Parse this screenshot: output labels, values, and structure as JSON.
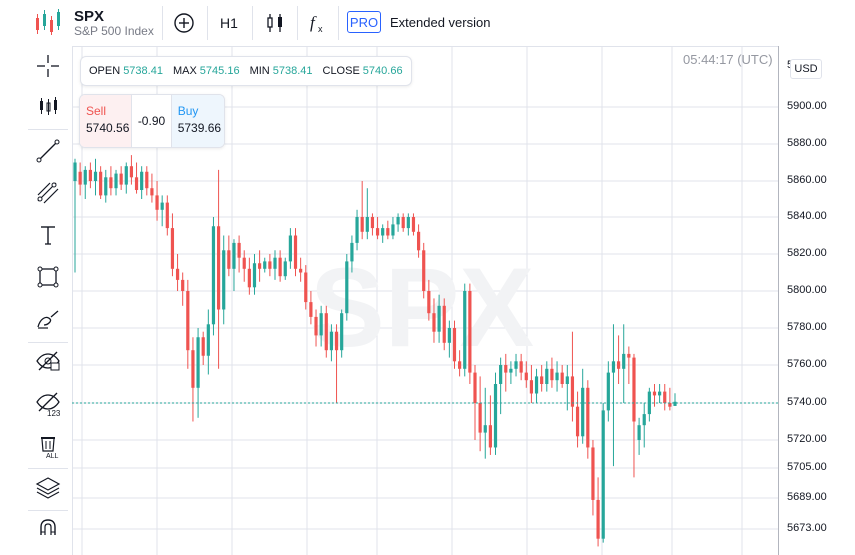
{
  "symbol": {
    "ticker": "SPX",
    "name": "S&P 500 Index"
  },
  "toolbar": {
    "timeframe": "H1",
    "pro": "PRO",
    "extended": "Extended version"
  },
  "leftbar": {
    "tools": [
      "crosshair-icon",
      "candles-icon",
      "trend-line-icon",
      "fib-icon",
      "text-icon",
      "rectangle-icon",
      "brush-icon",
      "hide-drawings-icon",
      "hide-indicators-icon",
      "delete-all-icon",
      "layers-icon",
      "magnet-icon"
    ]
  },
  "ohlc": {
    "open_label": "OPEN",
    "open": "5738.41",
    "max_label": "MAX",
    "max": "5745.16",
    "min_label": "MIN",
    "min": "5738.41",
    "close_label": "CLOSE",
    "close": "5740.66"
  },
  "trade": {
    "sell_label": "Sell",
    "sell": "5740.56",
    "spread": "-0.90",
    "buy_label": "Buy",
    "buy": "5739.66"
  },
  "clock": "05:44:17 (UTC)",
  "watermark": "SPX",
  "currency": "USD",
  "price_scale": {
    "ticks": [
      "5900.00",
      "5880.00",
      "5860.00",
      "5840.00",
      "5820.00",
      "5800.00",
      "5780.00",
      "5760.00",
      "5740.00",
      "5720.00",
      "5705.00",
      "5689.00",
      "5673.00"
    ],
    "partial_top": "5"
  },
  "colors": {
    "up": "#26a69a",
    "down": "#ef5350",
    "grid": "#e0e3eb",
    "accent": "#2962ff",
    "last_line": "#26a69a"
  },
  "chart_data": {
    "type": "candlestick",
    "last_price": 5740,
    "candles": [
      {
        "o": 5860,
        "h": 5872,
        "l": 5810,
        "c": 5870
      },
      {
        "o": 5865,
        "h": 5870,
        "l": 5852,
        "c": 5858
      },
      {
        "o": 5858,
        "h": 5868,
        "l": 5850,
        "c": 5866
      },
      {
        "o": 5866,
        "h": 5870,
        "l": 5856,
        "c": 5860
      },
      {
        "o": 5860,
        "h": 5872,
        "l": 5852,
        "c": 5865
      },
      {
        "o": 5865,
        "h": 5868,
        "l": 5850,
        "c": 5852
      },
      {
        "o": 5852,
        "h": 5866,
        "l": 5848,
        "c": 5862
      },
      {
        "o": 5862,
        "h": 5868,
        "l": 5852,
        "c": 5856
      },
      {
        "o": 5856,
        "h": 5866,
        "l": 5852,
        "c": 5864
      },
      {
        "o": 5864,
        "h": 5868,
        "l": 5855,
        "c": 5858
      },
      {
        "o": 5858,
        "h": 5870,
        "l": 5853,
        "c": 5868
      },
      {
        "o": 5868,
        "h": 5874,
        "l": 5858,
        "c": 5862
      },
      {
        "o": 5862,
        "h": 5870,
        "l": 5853,
        "c": 5855
      },
      {
        "o": 5855,
        "h": 5868,
        "l": 5850,
        "c": 5865
      },
      {
        "o": 5865,
        "h": 5868,
        "l": 5852,
        "c": 5856
      },
      {
        "o": 5856,
        "h": 5864,
        "l": 5848,
        "c": 5852
      },
      {
        "o": 5852,
        "h": 5860,
        "l": 5838,
        "c": 5844
      },
      {
        "o": 5844,
        "h": 5852,
        "l": 5835,
        "c": 5848
      },
      {
        "o": 5848,
        "h": 5852,
        "l": 5830,
        "c": 5834
      },
      {
        "o": 5834,
        "h": 5842,
        "l": 5808,
        "c": 5812
      },
      {
        "o": 5812,
        "h": 5820,
        "l": 5800,
        "c": 5806
      },
      {
        "o": 5806,
        "h": 5810,
        "l": 5792,
        "c": 5800
      },
      {
        "o": 5800,
        "h": 5806,
        "l": 5758,
        "c": 5768
      },
      {
        "o": 5768,
        "h": 5775,
        "l": 5730,
        "c": 5748
      },
      {
        "o": 5748,
        "h": 5780,
        "l": 5732,
        "c": 5775
      },
      {
        "o": 5775,
        "h": 5778,
        "l": 5760,
        "c": 5765
      },
      {
        "o": 5765,
        "h": 5790,
        "l": 5755,
        "c": 5782
      },
      {
        "o": 5782,
        "h": 5840,
        "l": 5776,
        "c": 5835
      },
      {
        "o": 5835,
        "h": 5866,
        "l": 5758,
        "c": 5790
      },
      {
        "o": 5790,
        "h": 5830,
        "l": 5782,
        "c": 5822
      },
      {
        "o": 5822,
        "h": 5830,
        "l": 5808,
        "c": 5812
      },
      {
        "o": 5812,
        "h": 5828,
        "l": 5800,
        "c": 5826
      },
      {
        "o": 5826,
        "h": 5830,
        "l": 5810,
        "c": 5818
      },
      {
        "o": 5818,
        "h": 5822,
        "l": 5805,
        "c": 5812
      },
      {
        "o": 5812,
        "h": 5818,
        "l": 5798,
        "c": 5802
      },
      {
        "o": 5802,
        "h": 5820,
        "l": 5798,
        "c": 5815
      },
      {
        "o": 5815,
        "h": 5822,
        "l": 5805,
        "c": 5812
      },
      {
        "o": 5812,
        "h": 5818,
        "l": 5810,
        "c": 5816
      },
      {
        "o": 5816,
        "h": 5820,
        "l": 5808,
        "c": 5812
      },
      {
        "o": 5812,
        "h": 5822,
        "l": 5806,
        "c": 5818
      },
      {
        "o": 5818,
        "h": 5822,
        "l": 5805,
        "c": 5808
      },
      {
        "o": 5808,
        "h": 5818,
        "l": 5806,
        "c": 5816
      },
      {
        "o": 5816,
        "h": 5834,
        "l": 5812,
        "c": 5830
      },
      {
        "o": 5830,
        "h": 5834,
        "l": 5808,
        "c": 5812
      },
      {
        "o": 5812,
        "h": 5818,
        "l": 5805,
        "c": 5810
      },
      {
        "o": 5810,
        "h": 5814,
        "l": 5790,
        "c": 5794
      },
      {
        "o": 5794,
        "h": 5800,
        "l": 5782,
        "c": 5786
      },
      {
        "o": 5786,
        "h": 5790,
        "l": 5770,
        "c": 5776
      },
      {
        "o": 5776,
        "h": 5792,
        "l": 5770,
        "c": 5788
      },
      {
        "o": 5788,
        "h": 5792,
        "l": 5764,
        "c": 5768
      },
      {
        "o": 5768,
        "h": 5782,
        "l": 5762,
        "c": 5778
      },
      {
        "o": 5778,
        "h": 5782,
        "l": 5740,
        "c": 5768
      },
      {
        "o": 5768,
        "h": 5790,
        "l": 5764,
        "c": 5788
      },
      {
        "o": 5788,
        "h": 5820,
        "l": 5784,
        "c": 5816
      },
      {
        "o": 5816,
        "h": 5830,
        "l": 5810,
        "c": 5826
      },
      {
        "o": 5826,
        "h": 5844,
        "l": 5822,
        "c": 5840
      },
      {
        "o": 5840,
        "h": 5860,
        "l": 5828,
        "c": 5832
      },
      {
        "o": 5832,
        "h": 5856,
        "l": 5828,
        "c": 5840
      },
      {
        "o": 5840,
        "h": 5842,
        "l": 5830,
        "c": 5834
      },
      {
        "o": 5834,
        "h": 5840,
        "l": 5828,
        "c": 5830
      },
      {
        "o": 5830,
        "h": 5836,
        "l": 5826,
        "c": 5834
      },
      {
        "o": 5834,
        "h": 5838,
        "l": 5828,
        "c": 5830
      },
      {
        "o": 5830,
        "h": 5840,
        "l": 5828,
        "c": 5836
      },
      {
        "o": 5836,
        "h": 5842,
        "l": 5832,
        "c": 5840
      },
      {
        "o": 5840,
        "h": 5842,
        "l": 5832,
        "c": 5834
      },
      {
        "o": 5834,
        "h": 5842,
        "l": 5830,
        "c": 5840
      },
      {
        "o": 5840,
        "h": 5842,
        "l": 5830,
        "c": 5832
      },
      {
        "o": 5832,
        "h": 5836,
        "l": 5818,
        "c": 5822
      },
      {
        "o": 5822,
        "h": 5826,
        "l": 5796,
        "c": 5800
      },
      {
        "o": 5800,
        "h": 5806,
        "l": 5784,
        "c": 5788
      },
      {
        "o": 5788,
        "h": 5796,
        "l": 5772,
        "c": 5778
      },
      {
        "o": 5778,
        "h": 5798,
        "l": 5772,
        "c": 5792
      },
      {
        "o": 5792,
        "h": 5796,
        "l": 5768,
        "c": 5772
      },
      {
        "o": 5772,
        "h": 5784,
        "l": 5764,
        "c": 5780
      },
      {
        "o": 5780,
        "h": 5784,
        "l": 5758,
        "c": 5762
      },
      {
        "o": 5762,
        "h": 5768,
        "l": 5754,
        "c": 5758
      },
      {
        "o": 5758,
        "h": 5804,
        "l": 5754,
        "c": 5800
      },
      {
        "o": 5800,
        "h": 5804,
        "l": 5750,
        "c": 5756
      },
      {
        "o": 5756,
        "h": 5760,
        "l": 5720,
        "c": 5740
      },
      {
        "o": 5740,
        "h": 5754,
        "l": 5714,
        "c": 5724
      },
      {
        "o": 5724,
        "h": 5748,
        "l": 5710,
        "c": 5728
      },
      {
        "o": 5728,
        "h": 5744,
        "l": 5712,
        "c": 5716
      },
      {
        "o": 5716,
        "h": 5756,
        "l": 5712,
        "c": 5750
      },
      {
        "o": 5750,
        "h": 5764,
        "l": 5734,
        "c": 5760
      },
      {
        "o": 5760,
        "h": 5766,
        "l": 5746,
        "c": 5756
      },
      {
        "o": 5756,
        "h": 5762,
        "l": 5750,
        "c": 5758
      },
      {
        "o": 5758,
        "h": 5766,
        "l": 5754,
        "c": 5762
      },
      {
        "o": 5762,
        "h": 5766,
        "l": 5752,
        "c": 5756
      },
      {
        "o": 5756,
        "h": 5762,
        "l": 5748,
        "c": 5752
      },
      {
        "o": 5752,
        "h": 5760,
        "l": 5740,
        "c": 5745
      },
      {
        "o": 5745,
        "h": 5758,
        "l": 5740,
        "c": 5754
      },
      {
        "o": 5754,
        "h": 5760,
        "l": 5746,
        "c": 5750
      },
      {
        "o": 5750,
        "h": 5762,
        "l": 5746,
        "c": 5758
      },
      {
        "o": 5758,
        "h": 5764,
        "l": 5748,
        "c": 5752
      },
      {
        "o": 5752,
        "h": 5762,
        "l": 5746,
        "c": 5756
      },
      {
        "o": 5756,
        "h": 5760,
        "l": 5748,
        "c": 5750
      },
      {
        "o": 5750,
        "h": 5760,
        "l": 5736,
        "c": 5754
      },
      {
        "o": 5754,
        "h": 5778,
        "l": 5730,
        "c": 5738
      },
      {
        "o": 5738,
        "h": 5746,
        "l": 5716,
        "c": 5722
      },
      {
        "o": 5722,
        "h": 5758,
        "l": 5718,
        "c": 5748
      },
      {
        "o": 5748,
        "h": 5752,
        "l": 5710,
        "c": 5716
      },
      {
        "o": 5716,
        "h": 5720,
        "l": 5680,
        "c": 5688
      },
      {
        "o": 5688,
        "h": 5700,
        "l": 5664,
        "c": 5668
      },
      {
        "o": 5668,
        "h": 5740,
        "l": 5666,
        "c": 5736
      },
      {
        "o": 5736,
        "h": 5762,
        "l": 5730,
        "c": 5756
      },
      {
        "o": 5756,
        "h": 5782,
        "l": 5706,
        "c": 5762
      },
      {
        "o": 5762,
        "h": 5776,
        "l": 5750,
        "c": 5758
      },
      {
        "o": 5758,
        "h": 5782,
        "l": 5740,
        "c": 5766
      },
      {
        "o": 5766,
        "h": 5770,
        "l": 5750,
        "c": 5764
      },
      {
        "o": 5764,
        "h": 5766,
        "l": 5700,
        "c": 5730
      },
      {
        "o": 5720,
        "h": 5732,
        "l": 5712,
        "c": 5728
      },
      {
        "o": 5728,
        "h": 5740,
        "l": 5716,
        "c": 5734
      },
      {
        "o": 5734,
        "h": 5748,
        "l": 5730,
        "c": 5746
      },
      {
        "o": 5746,
        "h": 5750,
        "l": 5738,
        "c": 5744
      },
      {
        "o": 5744,
        "h": 5750,
        "l": 5740,
        "c": 5746
      },
      {
        "o": 5746,
        "h": 5750,
        "l": 5736,
        "c": 5740
      },
      {
        "o": 5740,
        "h": 5748,
        "l": 5736,
        "c": 5738
      },
      {
        "o": 5738.41,
        "h": 5745.16,
        "l": 5738.41,
        "c": 5740.66
      }
    ]
  }
}
